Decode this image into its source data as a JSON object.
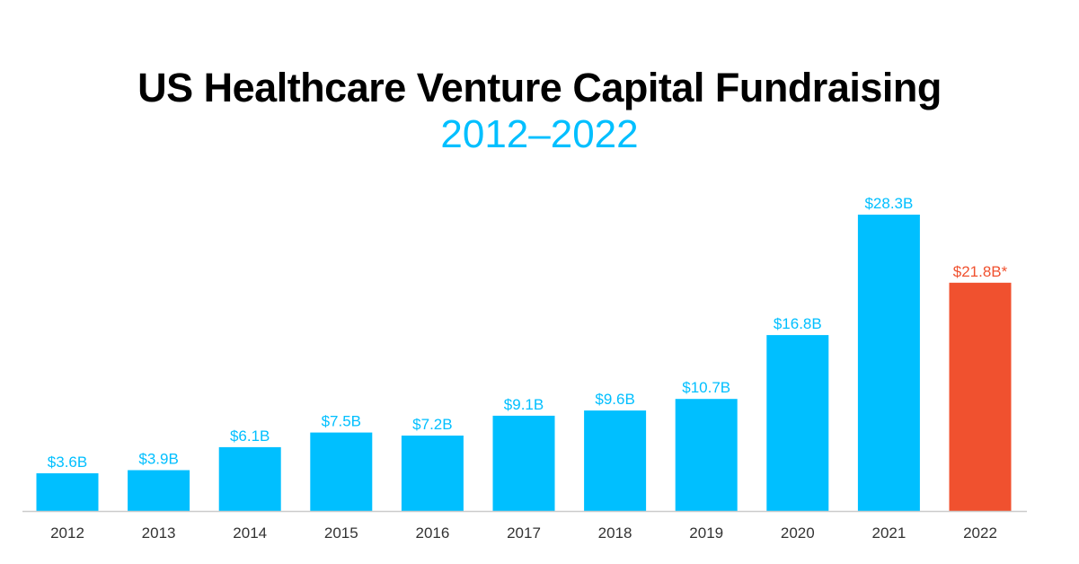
{
  "colors": {
    "bar": "#00bfff",
    "highlight": "#f0512f",
    "axis": "#cccccc",
    "tick_text": "#333333",
    "title": "#000000",
    "subtitle": "#00bfff"
  },
  "chart_data": {
    "type": "bar",
    "title": "US Healthcare Venture Capital Fundraising",
    "subtitle": "2012–2022",
    "xlabel": "",
    "ylabel": "",
    "ylim": [
      0,
      30
    ],
    "grid": false,
    "categories": [
      "2012",
      "2013",
      "2014",
      "2015",
      "2016",
      "2017",
      "2018",
      "2019",
      "2020",
      "2021",
      "2022"
    ],
    "values": [
      3.6,
      3.9,
      6.1,
      7.5,
      7.2,
      9.1,
      9.6,
      10.7,
      16.8,
      28.3,
      21.8
    ],
    "labels": [
      "$3.6B",
      "$3.9B",
      "$6.1B",
      "$7.5B",
      "$7.2B",
      "$9.1B",
      "$9.6B",
      "$10.7B",
      "$16.8B",
      "$28.3B",
      "$21.8B*"
    ],
    "highlighted": [
      false,
      false,
      false,
      false,
      false,
      false,
      false,
      false,
      false,
      false,
      true
    ]
  }
}
